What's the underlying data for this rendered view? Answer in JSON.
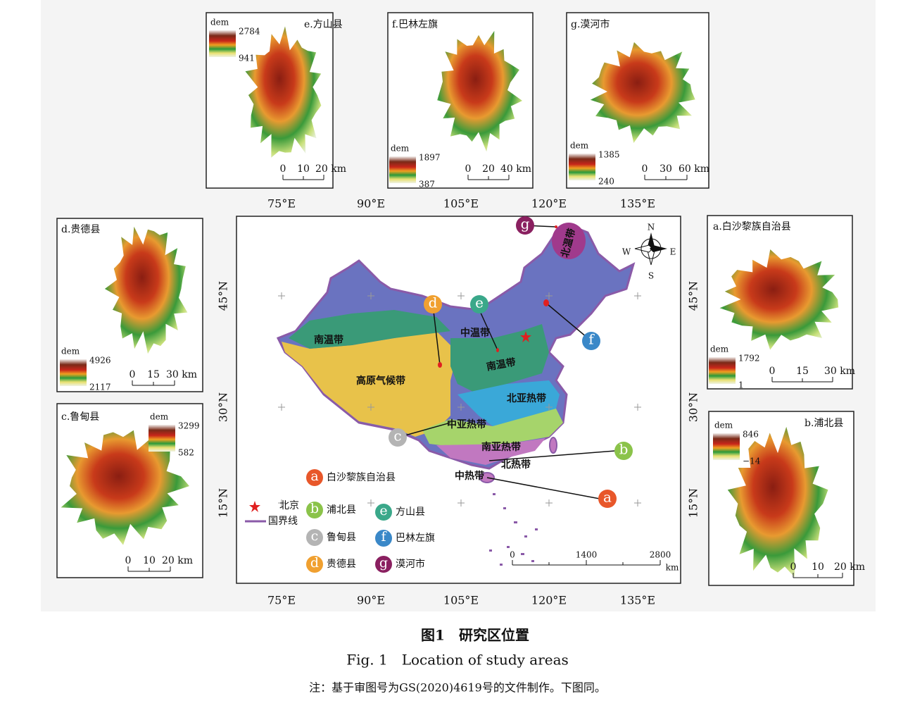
{
  "insets": [
    {
      "title": "a.白沙黎族自治县",
      "legend_title": "dem",
      "max": "1792",
      "min": "1",
      "scale": [
        "0",
        "15",
        "30 km"
      ]
    },
    {
      "title": "b.浦北县",
      "legend_title": "dem",
      "max": "846",
      "min": "−14",
      "scale": [
        "0",
        "10",
        "20 km"
      ]
    },
    {
      "title": "c.鲁甸县",
      "legend_title": "dem",
      "max": "3299",
      "min": "582",
      "scale": [
        "0",
        "10",
        "20 km"
      ]
    },
    {
      "title": "d.贵德县",
      "legend_title": "dem",
      "max": "4926",
      "min": "2117",
      "scale": [
        "0",
        "15",
        "30 km"
      ]
    },
    {
      "title": "e.方山县",
      "legend_title": "dem",
      "max": "2784",
      "min": "941",
      "scale": [
        "0",
        "10",
        "20 km"
      ]
    },
    {
      "title": "f.巴林左旗",
      "legend_title": "dem",
      "max": "1897",
      "min": "387",
      "scale": [
        "0",
        "20",
        "40 km"
      ]
    },
    {
      "title": "g.漠河市",
      "legend_title": "dem",
      "max": "1385",
      "min": "240",
      "scale": [
        "0",
        "30",
        "60 km"
      ]
    }
  ],
  "main_map": {
    "lon_labels": [
      "75°E",
      "90°E",
      "105°E",
      "120°E",
      "135°E"
    ],
    "lat_labels": [
      "45°N",
      "30°N",
      "15°N"
    ],
    "zones": [
      "北温带",
      "中温带",
      "南温带",
      "南温带",
      "高原气候带",
      "北亚热带",
      "中亚热带",
      "南亚热带",
      "北热带",
      "中热带"
    ],
    "compass": [
      "N",
      "S",
      "W",
      "E"
    ],
    "capital": "北京",
    "border": "国界线",
    "markers": [
      {
        "letter": "a",
        "name": "白沙黎族自治县",
        "color": "#e8572a"
      },
      {
        "letter": "b",
        "name": "浦北县",
        "color": "#8bc34a"
      },
      {
        "letter": "c",
        "name": "鲁甸县",
        "color": "#b4b4b4"
      },
      {
        "letter": "d",
        "name": "贵德县",
        "color": "#f0a030"
      },
      {
        "letter": "e",
        "name": "方山县",
        "color": "#3aa88a"
      },
      {
        "letter": "f",
        "name": "巴林左旗",
        "color": "#3a88c8"
      },
      {
        "letter": "g",
        "name": "漠河市",
        "color": "#8a2060"
      }
    ],
    "scale": [
      "0",
      "1400",
      "2800",
      "km"
    ]
  },
  "caption": {
    "cn": "图1　研究区位置",
    "en": "Fig. 1　Location of study areas",
    "note": "注：基于审图号为GS(2020)4619号的文件制作。下图同。"
  }
}
